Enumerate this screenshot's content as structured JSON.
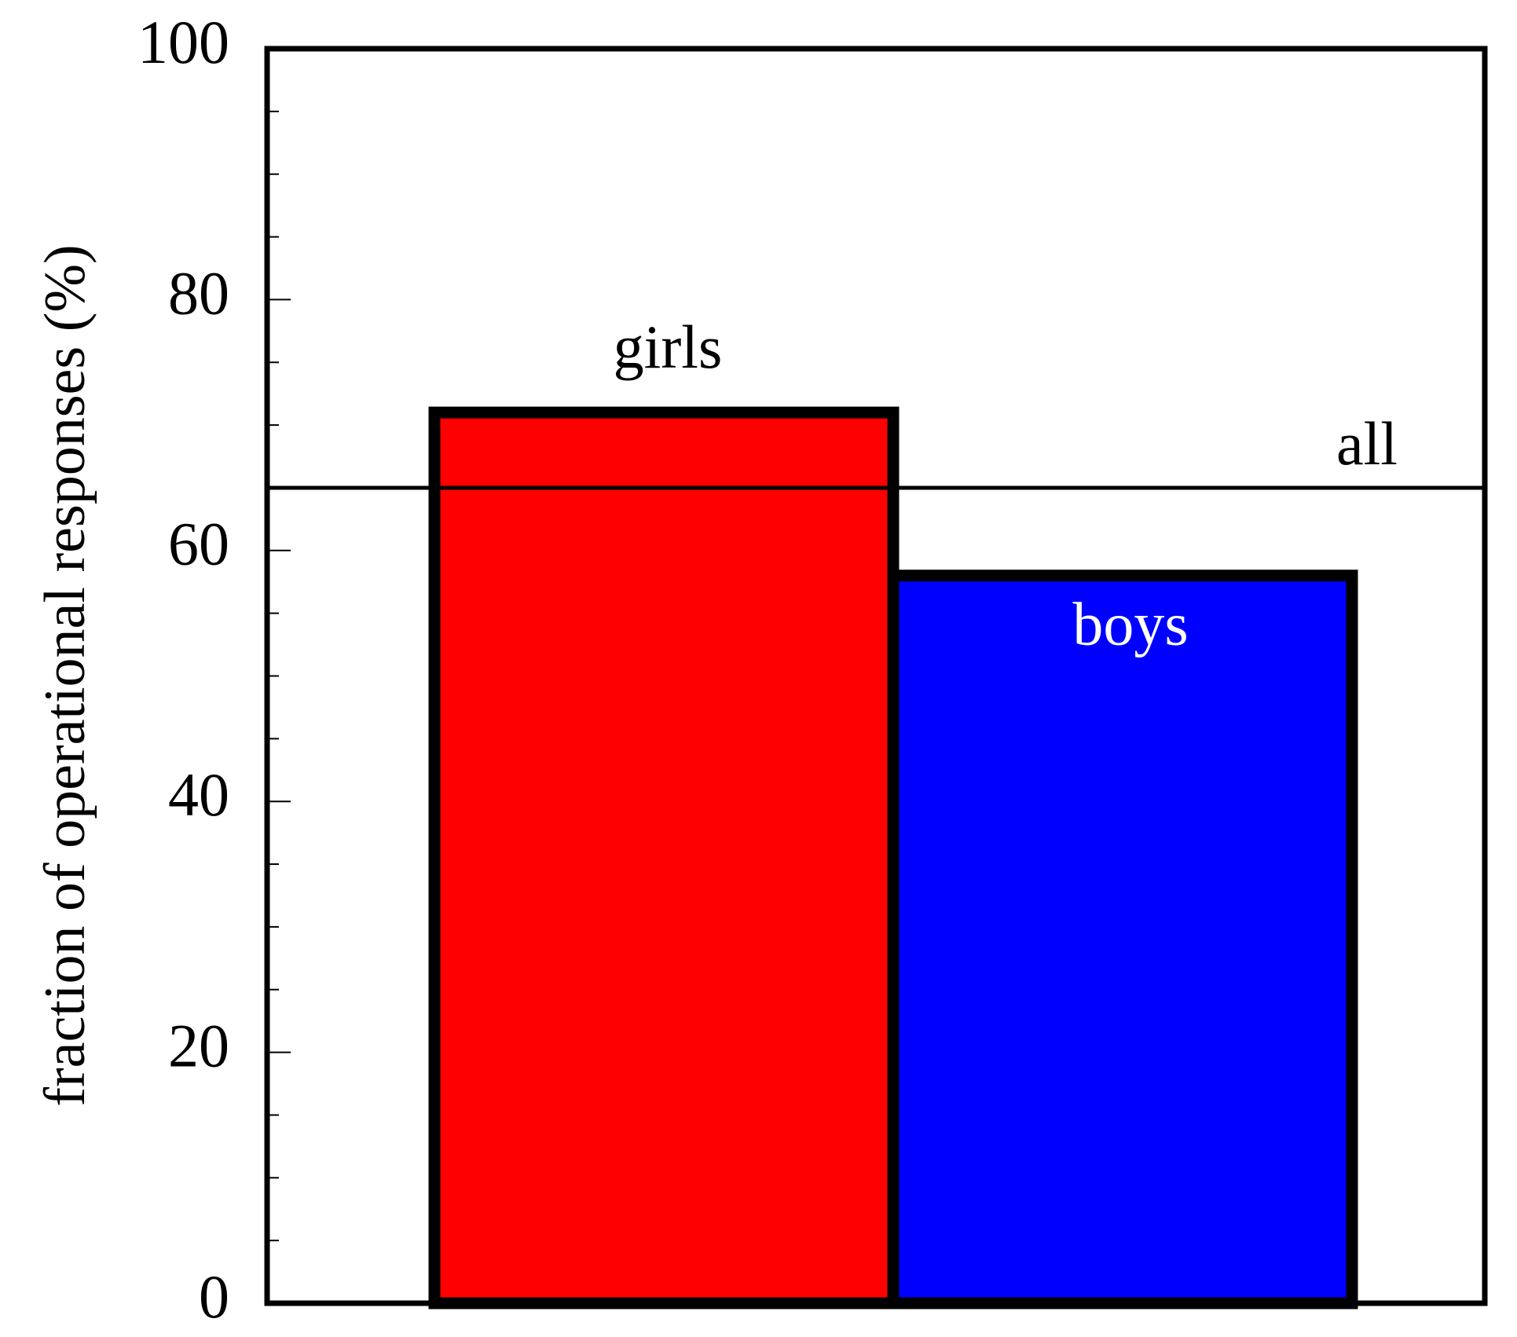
{
  "chart_data": {
    "type": "bar",
    "ylabel": "fraction of operational responses (%)",
    "categories": [
      "girls",
      "boys"
    ],
    "values": [
      71,
      58
    ],
    "colors": [
      "#ff0000",
      "#0000ff"
    ],
    "reference_line": {
      "label": "all",
      "value": 65
    },
    "ylim": [
      0,
      100
    ],
    "yticks": [
      0,
      20,
      40,
      60,
      80,
      100
    ],
    "minor_yticks": [
      5,
      10,
      15,
      25,
      30,
      35,
      45,
      50,
      55,
      65,
      70,
      75,
      85,
      90,
      95
    ]
  }
}
